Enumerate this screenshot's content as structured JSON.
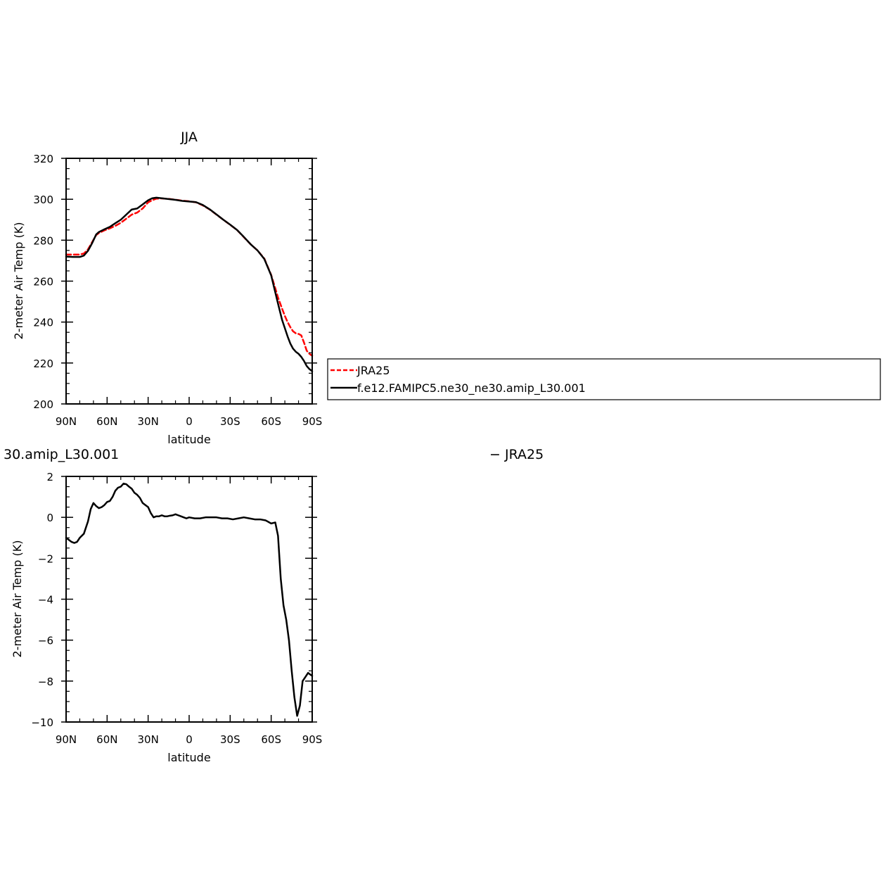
{
  "chart_data": [
    {
      "type": "line",
      "title": "JJA",
      "xlabel": "latitude",
      "ylabel": "2-meter Air Temp (K)",
      "xlim": [
        90,
        -90
      ],
      "ylim": [
        200,
        320
      ],
      "xticks": [
        90,
        60,
        30,
        0,
        -30,
        -60,
        -90
      ],
      "xtick_labels": [
        "90N",
        "60N",
        "30N",
        "0",
        "30S",
        "60S",
        "90S"
      ],
      "yticks": [
        200,
        220,
        240,
        260,
        280,
        300,
        320
      ],
      "ytick_labels": [
        "200",
        "220",
        "240",
        "260",
        "280",
        "300",
        "320"
      ],
      "grid": false,
      "legend_position": "right",
      "series": [
        {
          "name": "JRA25",
          "color": "#ff0000",
          "style": "dashed",
          "x": [
            90,
            85,
            80,
            77,
            74,
            71,
            68,
            66,
            62,
            58,
            54,
            50,
            46,
            42,
            38,
            34,
            30,
            27,
            24,
            20,
            15,
            10,
            5,
            0,
            -5,
            -10,
            -15,
            -20,
            -25,
            -30,
            -35,
            -40,
            -45,
            -50,
            -55,
            -60,
            -63,
            -65,
            -68,
            -70,
            -72,
            -74,
            -76,
            -78,
            -80,
            -82,
            -84,
            -86,
            -88,
            -90
          ],
          "y": [
            273.0,
            273.0,
            273.0,
            273.5,
            275.5,
            279.0,
            282.5,
            283.5,
            284.8,
            285.8,
            287.0,
            288.5,
            290.5,
            292.5,
            293.5,
            295.5,
            298.5,
            299.5,
            300.3,
            300.4,
            300.2,
            299.8,
            299.3,
            299.0,
            298.5,
            297.0,
            295.0,
            292.5,
            290.0,
            287.5,
            285.0,
            281.5,
            278.0,
            275.0,
            271.0,
            263.0,
            256.5,
            252.0,
            246.5,
            243.0,
            240.0,
            237.5,
            235.5,
            234.5,
            234.2,
            233.5,
            230.0,
            226.0,
            224.5,
            223.5
          ]
        },
        {
          "name": "f.e12.FAMIPC5.ne30_ne30.amip_L30.001",
          "color": "#000000",
          "style": "solid",
          "x": [
            90,
            85,
            80,
            77,
            74,
            71,
            68,
            66,
            62,
            58,
            54,
            50,
            46,
            42,
            38,
            34,
            30,
            27,
            24,
            20,
            15,
            10,
            5,
            0,
            -5,
            -10,
            -15,
            -20,
            -25,
            -30,
            -35,
            -40,
            -45,
            -50,
            -55,
            -60,
            -63,
            -65,
            -68,
            -70,
            -72,
            -74,
            -76,
            -78,
            -80,
            -82,
            -84,
            -86,
            -88,
            -90
          ],
          "y": [
            272.0,
            271.8,
            271.8,
            272.5,
            274.8,
            278.5,
            282.8,
            284.0,
            285.3,
            286.5,
            288.3,
            290.0,
            292.5,
            295.0,
            295.5,
            297.5,
            299.5,
            300.5,
            300.8,
            300.5,
            300.1,
            299.7,
            299.2,
            298.9,
            298.6,
            297.2,
            295.1,
            292.6,
            290.0,
            287.6,
            285.0,
            281.6,
            278.0,
            275.0,
            270.8,
            262.8,
            254.5,
            249.0,
            241.0,
            237.0,
            233.0,
            229.5,
            227.0,
            225.5,
            224.5,
            223.0,
            221.0,
            218.5,
            217.0,
            216.0
          ]
        }
      ]
    },
    {
      "type": "line",
      "title": "",
      "xlabel": "latitude",
      "ylabel": "2-meter Air Temp (K)",
      "xlim": [
        90,
        -90
      ],
      "ylim": [
        -10,
        2
      ],
      "xticks": [
        90,
        60,
        30,
        0,
        -30,
        -60,
        -90
      ],
      "xtick_labels": [
        "90N",
        "60N",
        "30N",
        "0",
        "30S",
        "60S",
        "90S"
      ],
      "yticks": [
        -10,
        -8,
        -6,
        -4,
        -2,
        0,
        2
      ],
      "ytick_labels": [
        "−10",
        "−8",
        "−6",
        "−4",
        "−2",
        "0",
        "2"
      ],
      "grid": false,
      "series": [
        {
          "color": "#000000",
          "style": "solid",
          "x": [
            90,
            88,
            86,
            84,
            82,
            80,
            77,
            74,
            72,
            70,
            68,
            66,
            64,
            62,
            60,
            58,
            56,
            54,
            52,
            50,
            48,
            46,
            44,
            42,
            40,
            38,
            36,
            34,
            32,
            30,
            28,
            26,
            24,
            22,
            20,
            18,
            16,
            14,
            12,
            10,
            8,
            6,
            4,
            2,
            0,
            -4,
            -8,
            -12,
            -16,
            -20,
            -24,
            -28,
            -32,
            -36,
            -40,
            -44,
            -48,
            -52,
            -56,
            -60,
            -63,
            -65,
            -67,
            -69,
            -71,
            -73,
            -75,
            -77,
            -79,
            -81,
            -83,
            -85,
            -87,
            -89,
            -90
          ],
          "y": [
            -1.0,
            -1.1,
            -1.2,
            -1.25,
            -1.2,
            -1.0,
            -0.8,
            -0.2,
            0.4,
            0.7,
            0.55,
            0.45,
            0.5,
            0.6,
            0.75,
            0.8,
            1.0,
            1.3,
            1.45,
            1.5,
            1.65,
            1.62,
            1.5,
            1.4,
            1.2,
            1.1,
            0.95,
            0.7,
            0.6,
            0.5,
            0.2,
            0.0,
            0.05,
            0.05,
            0.1,
            0.05,
            0.05,
            0.08,
            0.1,
            0.15,
            0.1,
            0.05,
            0.0,
            -0.05,
            0.0,
            -0.05,
            -0.05,
            0.0,
            0.0,
            0.0,
            -0.05,
            -0.05,
            -0.1,
            -0.05,
            0.0,
            -0.05,
            -0.1,
            -0.1,
            -0.15,
            -0.3,
            -0.25,
            -0.9,
            -3.0,
            -4.3,
            -5.0,
            -6.0,
            -7.5,
            -8.8,
            -9.7,
            -9.2,
            -8.0,
            -7.8,
            -7.6,
            -7.7,
            -7.75
          ]
        }
      ]
    }
  ],
  "legend_top": {
    "entries": [
      {
        "label": "JRA25",
        "color": "#ff0000",
        "style": "dashed"
      },
      {
        "label": "f.e12.FAMIPC5.ne30_ne30.amip_L30.001",
        "color": "#000000",
        "style": "solid"
      }
    ]
  },
  "bottom_title": {
    "left": "30.amip_L30.001",
    "right": "− JRA25"
  }
}
